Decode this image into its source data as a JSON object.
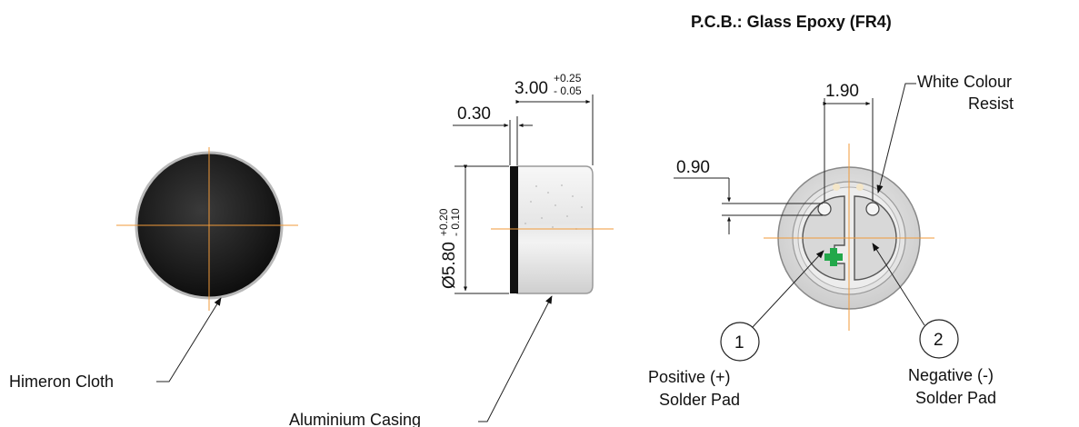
{
  "header": {
    "pcb_material": "P.C.B.: Glass Epoxy (FR4)"
  },
  "front_view": {
    "label_cloth": "Himeron Cloth"
  },
  "side_view": {
    "length_nominal": "3.00",
    "length_tol_plus": "+0.25",
    "length_tol_minus": "- 0.05",
    "cloth_thickness": "0.30",
    "diameter_nominal": "Ø5.80",
    "diameter_tol_plus": "+0.20",
    "diameter_tol_minus": "- 0.10",
    "label_casing": "Aluminium Casing"
  },
  "rear_view": {
    "pad_spacing": "1.90",
    "hole_size": "0.90",
    "resist_label_line1": "White Colour",
    "resist_label_line2": "Resist",
    "pad1_number": "1",
    "pad2_number": "2",
    "pad1_label_line1": "Positive (+)",
    "pad1_label_line2": "Solder Pad",
    "pad2_label_line1": "Negative (-)",
    "pad2_label_line2": "Solder Pad",
    "plus_mark": "+"
  },
  "colors": {
    "centerline": "#f09a3a",
    "plus_mark": "#22a84a",
    "cloth": "#1e1e1e",
    "casing": "#e9e9e9"
  }
}
